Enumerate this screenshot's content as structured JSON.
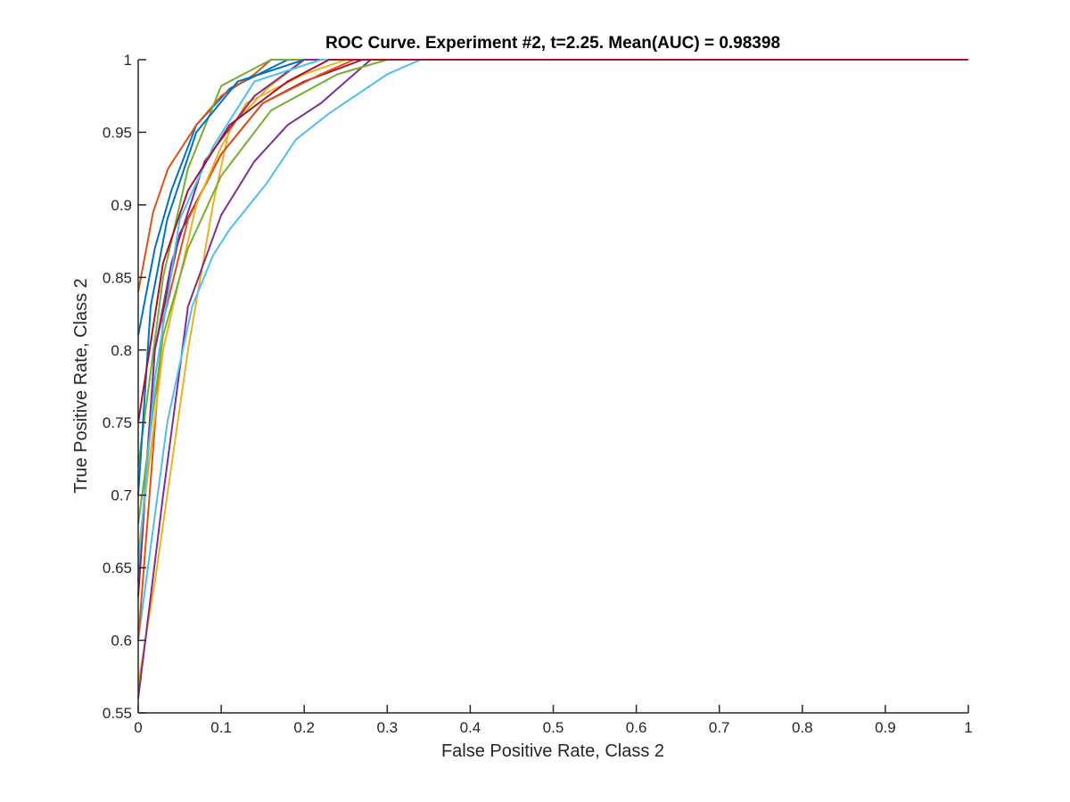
{
  "chart_data": {
    "type": "line",
    "title": "ROC Curve. Experiment #2, t=2.25. Mean(AUC) = 0.98398",
    "xlabel": "False Positive Rate, Class 2",
    "ylabel": "True Positive Rate, Class 2",
    "xlim": [
      0,
      1
    ],
    "ylim": [
      0.55,
      1
    ],
    "xticks": [
      "0",
      "0.1",
      "0.2",
      "0.3",
      "0.4",
      "0.5",
      "0.6",
      "0.7",
      "0.8",
      "0.9",
      "1"
    ],
    "yticks": [
      "0.55",
      "0.6",
      "0.65",
      "0.7",
      "0.75",
      "0.8",
      "0.85",
      "0.9",
      "0.95",
      "1"
    ],
    "grid": false,
    "series": [
      {
        "color": "#0072BD",
        "points": [
          [
            0,
            0.81
          ],
          [
            0.02,
            0.87
          ],
          [
            0.04,
            0.91
          ],
          [
            0.07,
            0.955
          ],
          [
            0.11,
            0.98
          ],
          [
            0.18,
            1
          ],
          [
            1,
            1
          ]
        ]
      },
      {
        "color": "#D95319",
        "points": [
          [
            0,
            0.84
          ],
          [
            0.018,
            0.895
          ],
          [
            0.036,
            0.925
          ],
          [
            0.07,
            0.955
          ],
          [
            0.1,
            0.975
          ],
          [
            0.14,
            0.99
          ],
          [
            0.16,
            1
          ],
          [
            1,
            1
          ]
        ]
      },
      {
        "color": "#EDB120",
        "points": [
          [
            0,
            0.57
          ],
          [
            0.02,
            0.64
          ],
          [
            0.04,
            0.72
          ],
          [
            0.06,
            0.8
          ],
          [
            0.09,
            0.9
          ],
          [
            0.11,
            0.953
          ],
          [
            0.155,
            0.98
          ],
          [
            0.2,
            1
          ],
          [
            1,
            1
          ]
        ]
      },
      {
        "color": "#7E2F8E",
        "points": [
          [
            0,
            0.56
          ],
          [
            0.03,
            0.7
          ],
          [
            0.06,
            0.83
          ],
          [
            0.1,
            0.893
          ],
          [
            0.14,
            0.93
          ],
          [
            0.18,
            0.955
          ],
          [
            0.22,
            0.97
          ],
          [
            0.28,
            1
          ],
          [
            1,
            1
          ]
        ]
      },
      {
        "color": "#77AC30",
        "points": [
          [
            0,
            0.72
          ],
          [
            0.03,
            0.85
          ],
          [
            0.06,
            0.925
          ],
          [
            0.1,
            0.982
          ],
          [
            0.16,
            1
          ],
          [
            1,
            1
          ]
        ]
      },
      {
        "color": "#4DBEEE",
        "points": [
          [
            0,
            0.6
          ],
          [
            0.035,
            0.75
          ],
          [
            0.065,
            0.83
          ],
          [
            0.09,
            0.865
          ],
          [
            0.11,
            0.883
          ],
          [
            0.155,
            0.915
          ],
          [
            0.19,
            0.945
          ],
          [
            0.23,
            0.963
          ],
          [
            0.3,
            0.99
          ],
          [
            0.34,
            1
          ],
          [
            1,
            1
          ]
        ]
      },
      {
        "color": "#A2142F",
        "points": [
          [
            0,
            0.63
          ],
          [
            0.02,
            0.8
          ],
          [
            0.05,
            0.88
          ],
          [
            0.1,
            0.935
          ],
          [
            0.15,
            0.97
          ],
          [
            0.2,
            0.985
          ],
          [
            0.27,
            1
          ],
          [
            1,
            1
          ]
        ]
      },
      {
        "color": "#0072BD",
        "points": [
          [
            0,
            0.7
          ],
          [
            0.015,
            0.83
          ],
          [
            0.035,
            0.89
          ],
          [
            0.07,
            0.95
          ],
          [
            0.12,
            0.985
          ],
          [
            0.2,
            1
          ],
          [
            1,
            1
          ]
        ]
      },
      {
        "color": "#D95319",
        "points": [
          [
            0,
            0.6
          ],
          [
            0.03,
            0.82
          ],
          [
            0.06,
            0.89
          ],
          [
            0.1,
            0.935
          ],
          [
            0.15,
            0.97
          ],
          [
            0.22,
            0.99
          ],
          [
            0.26,
            1
          ],
          [
            1,
            1
          ]
        ]
      },
      {
        "color": "#EDB120",
        "points": [
          [
            0,
            0.66
          ],
          [
            0.03,
            0.8
          ],
          [
            0.07,
            0.9
          ],
          [
            0.1,
            0.94
          ],
          [
            0.13,
            0.97
          ],
          [
            0.2,
            0.99
          ],
          [
            0.25,
            1
          ],
          [
            1,
            1
          ]
        ]
      },
      {
        "color": "#7E2F8E",
        "points": [
          [
            0,
            0.64
          ],
          [
            0.02,
            0.8
          ],
          [
            0.04,
            0.86
          ],
          [
            0.08,
            0.93
          ],
          [
            0.14,
            0.975
          ],
          [
            0.2,
            1
          ],
          [
            1,
            1
          ]
        ]
      },
      {
        "color": "#77AC30",
        "points": [
          [
            0,
            0.68
          ],
          [
            0.03,
            0.81
          ],
          [
            0.06,
            0.87
          ],
          [
            0.1,
            0.92
          ],
          [
            0.16,
            0.965
          ],
          [
            0.24,
            0.99
          ],
          [
            0.3,
            1
          ],
          [
            1,
            1
          ]
        ]
      },
      {
        "color": "#4DBEEE",
        "points": [
          [
            0,
            0.65
          ],
          [
            0.02,
            0.78
          ],
          [
            0.05,
            0.89
          ],
          [
            0.09,
            0.94
          ],
          [
            0.14,
            0.985
          ],
          [
            0.22,
            1
          ],
          [
            1,
            1
          ]
        ]
      },
      {
        "color": "#A2142F",
        "points": [
          [
            0,
            0.75
          ],
          [
            0.03,
            0.86
          ],
          [
            0.06,
            0.91
          ],
          [
            0.11,
            0.955
          ],
          [
            0.18,
            0.985
          ],
          [
            0.23,
            1
          ],
          [
            1,
            1
          ]
        ]
      }
    ]
  }
}
